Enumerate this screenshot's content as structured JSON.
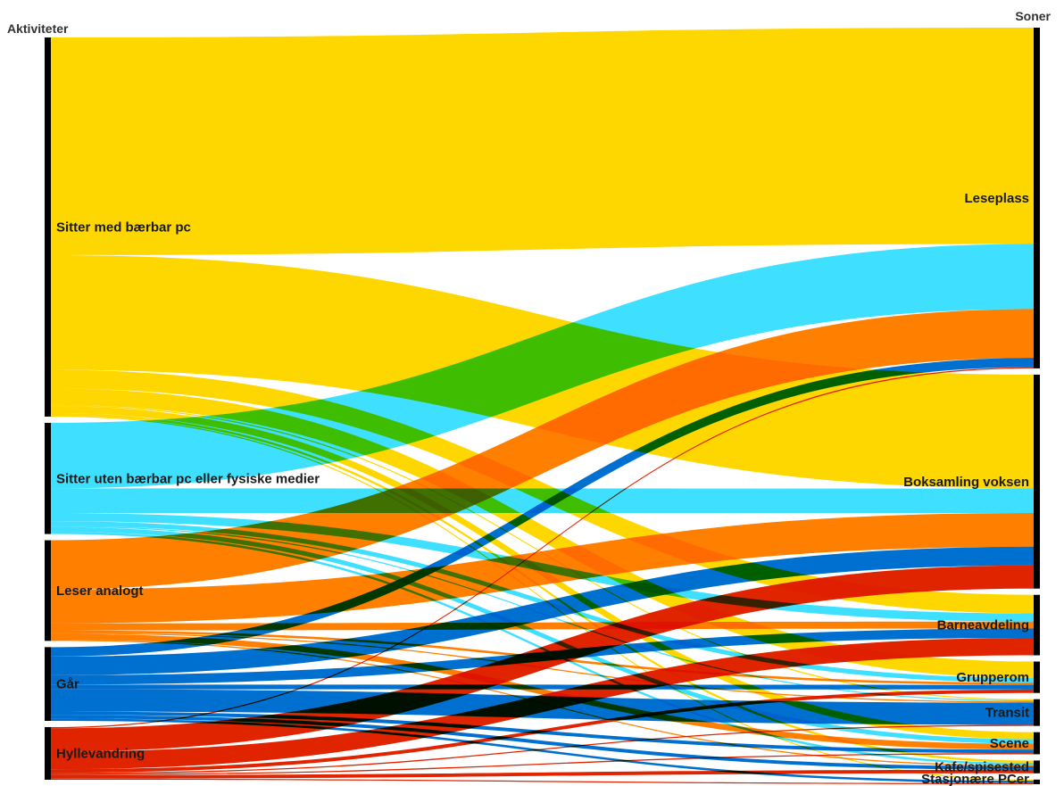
{
  "chart_data": {
    "type": "sankey",
    "left_title": "Aktiviteter",
    "right_title": "Soner",
    "left_nodes": [
      {
        "name": "Sitter med bærbar pc",
        "color": "#FFD700"
      },
      {
        "name": "Sitter uten bærbar pc eller fysiske medier",
        "color": "#3FE0FF"
      },
      {
        "name": "Leser analogt",
        "color": "#FF7F00"
      },
      {
        "name": "Går",
        "color": "#0070D0"
      },
      {
        "name": "Hyllevandring",
        "color": "#E02400"
      }
    ],
    "right_nodes": [
      {
        "name": "Leseplass"
      },
      {
        "name": "Boksamling voksen"
      },
      {
        "name": "Barneavdeling"
      },
      {
        "name": "Grupperom"
      },
      {
        "name": "Transit"
      },
      {
        "name": "Scene"
      },
      {
        "name": "Kafe/spisested"
      },
      {
        "name": "Stasjonære PCer"
      }
    ],
    "flows": [
      [
        186,
        98,
        16,
        14,
        1,
        6,
        2,
        1
      ],
      [
        56,
        21,
        7,
        4,
        1,
        4,
        2,
        0
      ],
      [
        42,
        29,
        6,
        2,
        1,
        5,
        1,
        0
      ],
      [
        8,
        16,
        8,
        4,
        19,
        3,
        3,
        2
      ],
      [
        1,
        20,
        15,
        3,
        1,
        1,
        3,
        1
      ]
    ]
  }
}
